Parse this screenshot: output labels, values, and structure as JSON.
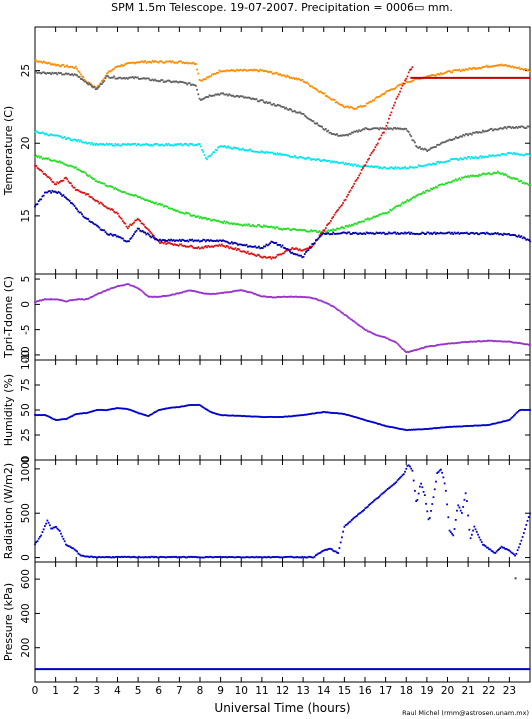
{
  "title": "SPM 1.5m Telescope. 19-07-2007. Precipitation = 0006▭ mm.",
  "credit": "Raul Michel (rmm@astrosen.unam.mx)",
  "chart_data": [
    {
      "type": "scatter",
      "ylabel": "Temperature (C)",
      "ylim": [
        11,
        28
      ],
      "yticks": [
        15,
        20,
        25
      ],
      "xlim": [
        0,
        24
      ],
      "grid": false,
      "series": [
        {
          "color": "#ff8c00",
          "x": [
            0,
            1,
            2,
            2.5,
            3,
            3.5,
            4,
            5,
            6,
            7,
            7.8,
            8,
            8.5,
            9,
            10,
            11,
            12,
            13,
            14,
            15,
            15.5,
            16,
            17,
            18,
            19,
            20,
            21,
            22,
            22.5,
            23,
            24
          ],
          "y": [
            25.7,
            25.4,
            25.2,
            24.2,
            23.8,
            24.8,
            25.3,
            25.6,
            25.6,
            25.6,
            25.5,
            24.3,
            24.6,
            25,
            25,
            25,
            24.7,
            24.3,
            23.4,
            22.5,
            22.4,
            22.6,
            23.5,
            24.2,
            24.6,
            24.9,
            25.1,
            25.3,
            25.4,
            25.3,
            25
          ]
        },
        {
          "color": "#c00000",
          "x": [
            18.2,
            24
          ],
          "y": [
            24.5,
            24.5
          ]
        },
        {
          "color": "#606060",
          "x": [
            0,
            1,
            2,
            2.5,
            3,
            3.5,
            4,
            5,
            6,
            7,
            7.8,
            8,
            8.5,
            9,
            10,
            11,
            12,
            13,
            13.5,
            14,
            14.5,
            15,
            16,
            16.5,
            17,
            17.5,
            18,
            18.5,
            19,
            20,
            21,
            22,
            23,
            24
          ],
          "y": [
            24.9,
            24.8,
            24.7,
            24.2,
            23.7,
            24.6,
            24.5,
            24.5,
            24.3,
            24.2,
            24,
            23,
            23.3,
            23.4,
            23.2,
            22.9,
            22.5,
            22,
            21.5,
            21,
            20.6,
            20.5,
            21,
            21,
            21,
            21,
            21,
            19.8,
            19.5,
            20.2,
            20.6,
            20.9,
            21.1,
            21.1
          ]
        },
        {
          "color": "#00e5ee",
          "x": [
            0,
            1,
            2,
            3,
            4,
            5,
            6,
            7,
            8,
            8.3,
            9,
            10,
            11,
            12,
            13,
            14,
            15,
            16,
            17,
            18,
            19,
            20,
            21,
            22,
            23,
            24
          ],
          "y": [
            20.8,
            20.5,
            20.2,
            19.9,
            19.9,
            19.9,
            19.9,
            19.9,
            19.9,
            18.9,
            19.8,
            19.6,
            19.4,
            19.2,
            19,
            18.8,
            18.6,
            18.4,
            18.3,
            18.3,
            18.5,
            18.8,
            19,
            19.1,
            19.3,
            19.2
          ]
        },
        {
          "color": "#22dd22",
          "x": [
            0,
            1,
            2,
            3,
            4,
            5,
            6,
            7,
            8,
            9,
            10,
            11,
            12,
            13,
            14,
            15,
            16,
            17,
            18,
            19,
            20,
            21,
            22,
            22.5,
            23,
            24
          ],
          "y": [
            19.1,
            18.8,
            18.3,
            17.4,
            16.8,
            16.3,
            15.8,
            15.3,
            14.9,
            14.6,
            14.4,
            14.3,
            14.1,
            14,
            13.9,
            14.2,
            14.7,
            15.2,
            16,
            16.7,
            17.3,
            17.7,
            17.9,
            18,
            17.7,
            17.1
          ]
        },
        {
          "color": "#dd1111",
          "x": [
            0,
            0.5,
            1,
            1.5,
            2,
            2.5,
            3,
            3.5,
            4,
            4.5,
            5,
            5.5,
            6,
            7,
            8,
            9,
            10,
            11,
            11.5,
            12,
            12.5,
            13,
            13.5,
            14,
            15,
            16,
            17,
            17.5,
            18,
            18.3
          ],
          "y": [
            18.5,
            17.8,
            17.2,
            17.6,
            16.8,
            16.5,
            16,
            15.6,
            15.2,
            14.2,
            14.8,
            14,
            13.2,
            13,
            12.8,
            13,
            12.6,
            12.2,
            12.1,
            12.4,
            12.8,
            12.6,
            13,
            14,
            16,
            18.5,
            21,
            23,
            24.5,
            25.3
          ]
        },
        {
          "color": "#0000aa",
          "x": [
            0,
            0.5,
            1,
            1.5,
            2,
            2.5,
            3,
            3.5,
            4,
            4.5,
            5,
            5.5,
            6,
            7,
            8,
            9,
            10,
            11,
            11.5,
            12,
            12.5,
            13,
            13.5,
            14,
            15,
            16,
            17,
            18,
            19,
            20,
            21,
            22,
            23,
            23.5,
            24
          ],
          "y": [
            15.6,
            16.6,
            16.7,
            16.3,
            15.5,
            14.8,
            14.3,
            13.8,
            13.6,
            13.2,
            14.1,
            13.7,
            13.3,
            13.3,
            13.3,
            13.3,
            13,
            12.8,
            13.2,
            12.9,
            12.4,
            12.2,
            13.1,
            13.8,
            13.8,
            13.8,
            13.8,
            13.8,
            13.8,
            13.8,
            13.8,
            13.8,
            13.7,
            13.6,
            13.3
          ]
        }
      ]
    },
    {
      "type": "scatter",
      "ylabel": "Tpri-Tdome (C)",
      "ylim": [
        -11,
        6
      ],
      "yticks": [
        5,
        0,
        -5,
        -10
      ],
      "xlim": [
        0,
        24
      ],
      "series": [
        {
          "color": "#9932cc",
          "x": [
            0,
            0.5,
            1,
            1.5,
            2,
            2.5,
            3,
            3.5,
            4,
            4.5,
            5,
            5.5,
            6,
            6.5,
            7,
            7.5,
            8,
            8.5,
            9,
            9.5,
            10,
            10.5,
            11,
            11.5,
            12,
            12.5,
            13,
            13.5,
            14,
            14.5,
            15,
            15.5,
            16,
            16.5,
            17,
            17.5,
            18,
            18.5,
            19,
            20,
            21,
            22,
            23,
            24
          ],
          "y": [
            0.5,
            1,
            1,
            0.6,
            1,
            1,
            2,
            2.8,
            3.6,
            4,
            3.2,
            1.5,
            1.5,
            1.8,
            2.2,
            2.8,
            2.3,
            2,
            2.2,
            2.5,
            2.8,
            2.3,
            1.6,
            1.4,
            1.5,
            1.5,
            1.5,
            1.2,
            0.5,
            -0.5,
            -2,
            -3.5,
            -5,
            -6,
            -6.6,
            -7.5,
            -9.5,
            -9,
            -8.4,
            -7.8,
            -7.4,
            -7.2,
            -7.4,
            -8
          ]
        }
      ]
    },
    {
      "type": "line",
      "ylabel": "Humidity (%)",
      "ylim": [
        0,
        100
      ],
      "yticks": [
        0,
        25,
        50,
        75,
        100
      ],
      "xlim": [
        0,
        24
      ],
      "series": [
        {
          "color": "#0000cc",
          "x": [
            0,
            0.5,
            1,
            1.5,
            2,
            2.5,
            3,
            3.5,
            4,
            4.5,
            5,
            5.5,
            6,
            6.5,
            7,
            7.5,
            8,
            8.5,
            9,
            10,
            11,
            12,
            13,
            14,
            15,
            16,
            17,
            18,
            19,
            20,
            21,
            22,
            23,
            23.5,
            24
          ],
          "y": [
            45,
            45,
            40,
            41,
            46,
            47,
            50,
            50,
            52,
            51,
            47,
            44,
            50,
            52,
            53,
            55,
            55,
            48,
            45,
            44,
            43,
            43,
            45,
            48,
            46,
            40,
            34,
            30,
            31,
            33,
            34,
            35,
            40,
            50,
            50
          ]
        }
      ]
    },
    {
      "type": "scatter",
      "ylabel": "Radiation (W/m2)",
      "ylim": [
        -50,
        1100
      ],
      "yticks": [
        0,
        500,
        1000
      ],
      "xlim": [
        0,
        24
      ],
      "series": [
        {
          "color": "#0000cc",
          "x": [
            0,
            0.3,
            0.6,
            0.8,
            1,
            1.2,
            1.5,
            2,
            2.2,
            2.5,
            3,
            4,
            5,
            6,
            7,
            8,
            9,
            10,
            11,
            12,
            13,
            13.5,
            14,
            14.3,
            14.7,
            15,
            15.5,
            16,
            16.5,
            17,
            17.5,
            17.9,
            18.1,
            18.3,
            18.5,
            18.7,
            18.9,
            19.1,
            19.3,
            19.5,
            19.7,
            19.9,
            20.1,
            20.3,
            20.5,
            20.7,
            20.9,
            21.1,
            21.3,
            21.5,
            21.7,
            22,
            22.3,
            22.6,
            23,
            23.3,
            23.6,
            24
          ],
          "y": [
            150,
            250,
            420,
            320,
            350,
            300,
            150,
            80,
            20,
            10,
            5,
            5,
            5,
            5,
            5,
            5,
            5,
            5,
            5,
            5,
            5,
            5,
            80,
            100,
            50,
            350,
            450,
            550,
            650,
            750,
            850,
            950,
            1050,
            980,
            600,
            850,
            700,
            400,
            650,
            950,
            1000,
            800,
            300,
            250,
            600,
            500,
            750,
            200,
            350,
            250,
            150,
            100,
            50,
            120,
            80,
            20,
            200,
            500
          ]
        }
      ]
    },
    {
      "type": "line",
      "ylabel": "Pressure (kPa)",
      "ylim": [
        0,
        700
      ],
      "yticks": [
        200,
        400,
        600
      ],
      "xlim": [
        0,
        24
      ],
      "xlabel": "Universal Time (hours)",
      "xticks": [
        0,
        1,
        2,
        3,
        4,
        5,
        6,
        7,
        8,
        9,
        10,
        11,
        12,
        13,
        14,
        15,
        16,
        17,
        18,
        19,
        20,
        21,
        22,
        23
      ],
      "series": [
        {
          "color": "#0000cc",
          "x": [
            0,
            24
          ],
          "y": [
            75,
            75
          ]
        },
        {
          "color": "#555555",
          "x": [
            23.3
          ],
          "y": [
            605
          ],
          "marker": "point"
        }
      ]
    }
  ]
}
